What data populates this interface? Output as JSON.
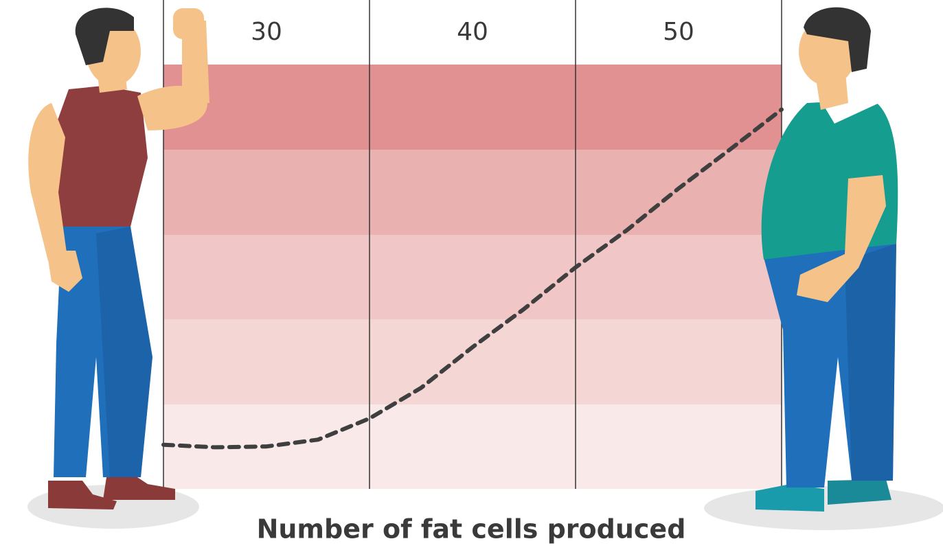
{
  "chart_data": {
    "type": "line",
    "x_label": "Number of fat cells produced",
    "xlim": [
      25,
      55
    ],
    "xticks": [
      30,
      40,
      50
    ],
    "ylim": [
      0,
      5
    ],
    "series": [
      {
        "color": "#3f3f3f",
        "x": [
          25,
          27.5,
          30,
          32.5,
          35,
          37.5,
          40,
          42.5,
          45,
          47.5,
          50,
          52.5,
          55
        ],
        "values": [
          0.52,
          0.49,
          0.5,
          0.58,
          0.83,
          1.19,
          1.67,
          2.12,
          2.61,
          3.05,
          3.54,
          4.0,
          4.47
        ]
      }
    ]
  }
}
